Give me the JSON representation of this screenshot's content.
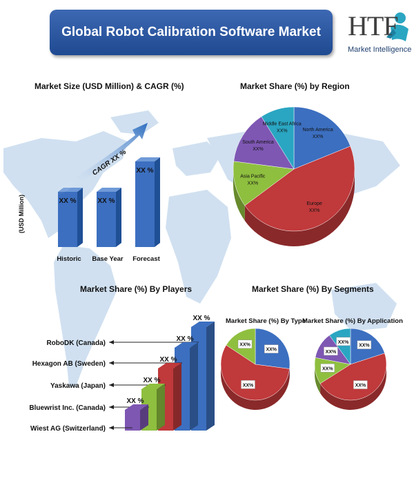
{
  "header": {
    "title": "Global Robot Calibration Software Market"
  },
  "logo": {
    "mark": "HTF",
    "subtitle": "Market Intelligence"
  },
  "colors": {
    "blue": "#3c6fc0",
    "red": "#c0393b",
    "green": "#8fbf3f",
    "purple": "#7e57b3",
    "teal": "#2aa6c2",
    "map": "#c5d9ec"
  },
  "chart_data": [
    {
      "type": "bar",
      "title": "Market Size (USD Million) & CAGR (%)",
      "ylabel": "(USD Million)",
      "categories": [
        "Historic",
        "Base Year",
        "Forecast"
      ],
      "values": [
        1,
        1,
        1.55
      ],
      "value_labels": [
        "XX %",
        "XX %",
        "XX %"
      ],
      "annotation": "CAGR XX %"
    },
    {
      "type": "pie",
      "title": "Market Share (%) by Region",
      "labels": [
        "North America",
        "Europe",
        "Asia Pacific",
        "South America",
        "Middle East Africa"
      ],
      "values": [
        19,
        46,
        12,
        14,
        9
      ],
      "value_labels": [
        "XX%",
        "XX%",
        "XX%",
        "XX%",
        "XX%"
      ]
    },
    {
      "type": "bar",
      "title": "Market Share (%) By Players",
      "categories": [
        "RoboDK (Canada)",
        "Hexagon AB (Sweden)",
        "Yaskawa (Japan)",
        "Bluewrist Inc. (Canada)",
        "Wiest AG (Switzerland)"
      ],
      "values": [
        5,
        4,
        3,
        2,
        1
      ],
      "value_labels": [
        "XX %",
        "XX %",
        "XX %",
        "XX %",
        "XX %"
      ]
    },
    {
      "type": "pie",
      "title": "Market Share (%) By Type",
      "group_title": "Market Share (%) By Segments",
      "labels": [
        "",
        "",
        ""
      ],
      "values": [
        27,
        57,
        16
      ],
      "value_labels": [
        "XX%",
        "XX%",
        "XX%"
      ]
    },
    {
      "type": "pie",
      "title": "Market Share (%) By Application",
      "group_title": "Market Share (%) By Segments",
      "labels": [
        "",
        "",
        "",
        "",
        ""
      ],
      "values": [
        20,
        46,
        12,
        12,
        10
      ],
      "value_labels": [
        "XX%",
        "XX%",
        "XX%",
        "XX%",
        "XX%"
      ]
    }
  ]
}
